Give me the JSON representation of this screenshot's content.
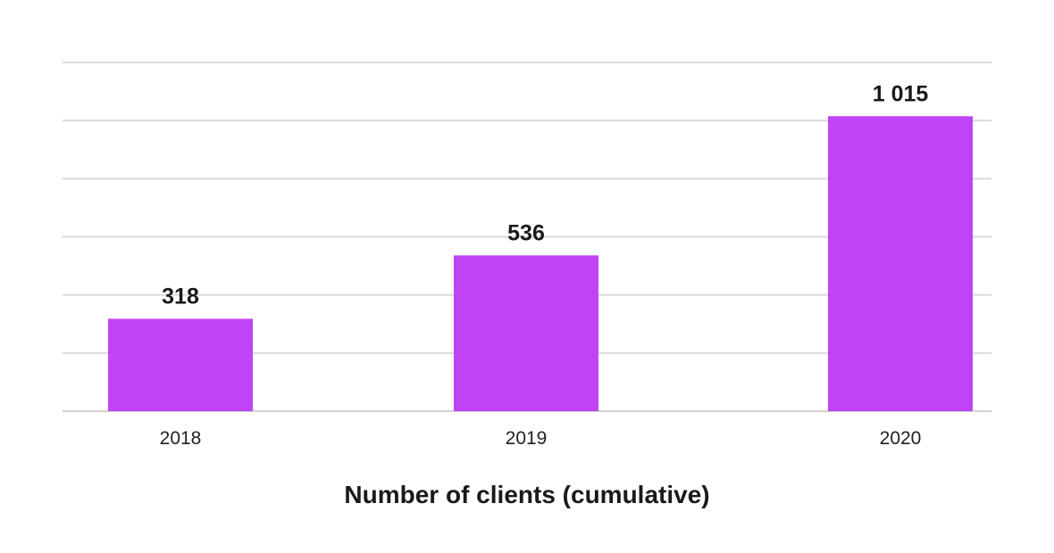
{
  "chart_data": {
    "type": "bar",
    "categories": [
      "2018",
      "2019",
      "2020"
    ],
    "values": [
      318,
      536,
      1015
    ],
    "value_labels": [
      "318",
      "536",
      "1 015"
    ],
    "title": "",
    "xlabel": "Number of clients (cumulative)",
    "ylabel": "",
    "ylim": [
      0,
      1200
    ],
    "grid": true,
    "gridline_step": 200,
    "legend": "none",
    "bar_color": "#c044f6"
  }
}
